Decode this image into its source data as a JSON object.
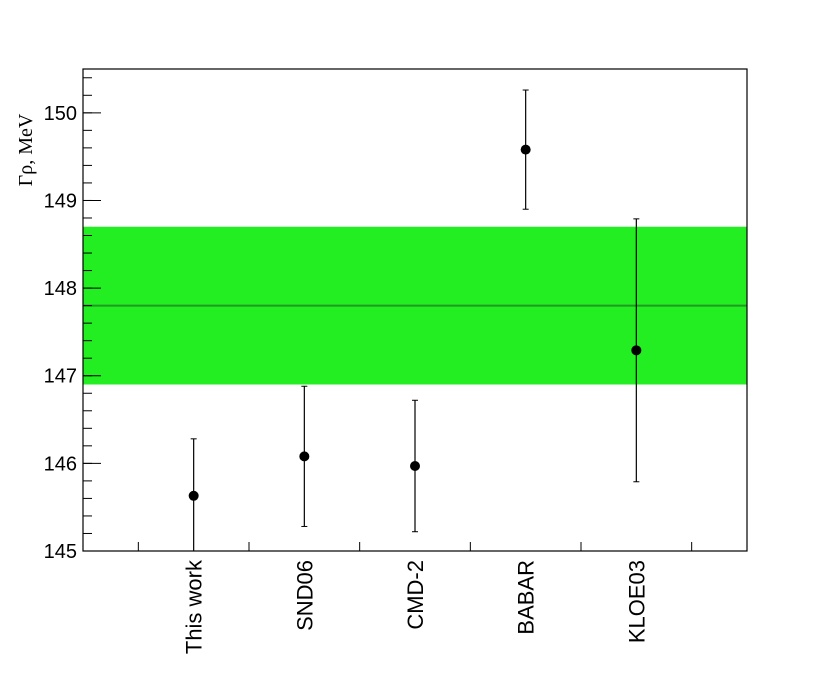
{
  "chart_data": {
    "type": "errorbar",
    "y_label": "Γρ, MeV",
    "categories": [
      "This work",
      "SND06",
      "CMD-2",
      "BABAR",
      "KLOE03"
    ],
    "values": [
      145.63,
      146.08,
      145.97,
      149.58,
      147.29
    ],
    "errors": [
      0.65,
      0.8,
      0.75,
      0.68,
      1.5
    ],
    "color": "#000000",
    "band": {
      "low": 146.9,
      "high": 148.7,
      "center": 147.8,
      "color": "#22ee22",
      "line_color": "#229922"
    },
    "ylim": [
      145,
      150.5
    ],
    "yticks": [
      145,
      146,
      147,
      148,
      149,
      150
    ]
  }
}
